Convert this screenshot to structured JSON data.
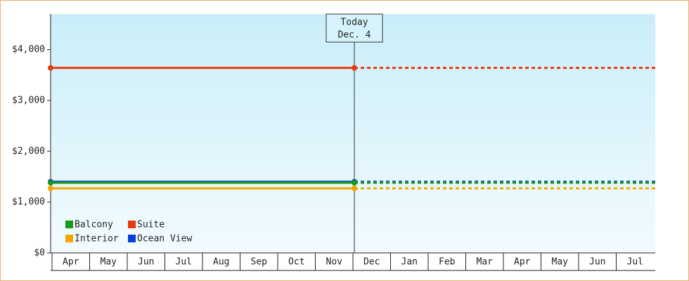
{
  "chart_data": {
    "type": "line",
    "categories": [
      "Apr",
      "May",
      "Jun",
      "Jul",
      "Aug",
      "Sep",
      "Oct",
      "Nov",
      "Dec",
      "Jan",
      "Feb",
      "Mar",
      "Apr",
      "May",
      "Jun",
      "Jul"
    ],
    "series": [
      {
        "name": "Ocean View",
        "color": "#0a3ed8",
        "values": [
          1400,
          1400,
          1400,
          1400,
          1400,
          1400,
          1400,
          1400,
          1400,
          null,
          null,
          null,
          null,
          null,
          null,
          null
        ]
      },
      {
        "name": "Balcony",
        "color": "#1a9a1a",
        "values": [
          1380,
          1380,
          1380,
          1380,
          1380,
          1380,
          1380,
          1380,
          1380,
          null,
          null,
          null,
          null,
          null,
          null,
          null
        ]
      },
      {
        "name": "Interior",
        "color": "#f5a500",
        "values": [
          1270,
          1270,
          1270,
          1270,
          1270,
          1270,
          1270,
          1270,
          1270,
          null,
          null,
          null,
          null,
          null,
          null,
          null
        ]
      },
      {
        "name": "Suite",
        "color": "#e83a10",
        "values": [
          3640,
          3640,
          3640,
          3640,
          3640,
          3640,
          3640,
          3640,
          3640,
          null,
          null,
          null,
          null,
          null,
          null,
          null
        ]
      }
    ],
    "annotation": {
      "label": "Today",
      "date": "Dec. 4"
    },
    "ylim": [
      0,
      4700
    ],
    "yticks": [
      {
        "value": 0,
        "label": "$0"
      },
      {
        "value": 1000,
        "label": "$1,000"
      },
      {
        "value": 2000,
        "label": "$2,000"
      },
      {
        "value": 3000,
        "label": "$3,000"
      },
      {
        "value": 4000,
        "label": "$4,000"
      }
    ],
    "legend": "bottom-left"
  }
}
